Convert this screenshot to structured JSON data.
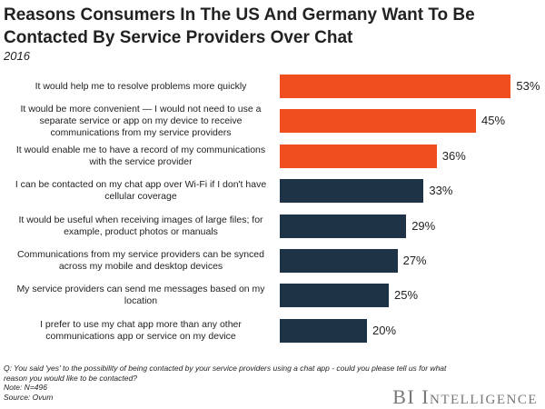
{
  "chart_data": {
    "type": "bar",
    "orientation": "horizontal",
    "title": "Reasons Consumers In The US And Germany Want To Be Contacted By Service Providers Over Chat",
    "subtitle": "2016",
    "categories": [
      "It would help me to resolve problems more quickly",
      "It would be more convenient — I would not need to use a separate service or app on my device to receive communications from my service providers",
      "It would enable me to have a record of my communications with the service provider",
      "I can be contacted on my chat app over Wi-Fi if I don't have cellular coverage",
      "It would be useful when receiving images of large files; for example, product photos or manuals",
      "Communications from my service providers can be synced across my mobile and desktop devices",
      "My service providers can send me messages based on my location",
      "I prefer to use my chat app more than any other communications app or service on my device"
    ],
    "values": [
      53,
      45,
      36,
      33,
      29,
      27,
      25,
      20
    ],
    "value_labels": [
      "53%",
      "45%",
      "36%",
      "33%",
      "29%",
      "27%",
      "25%",
      "20%"
    ],
    "colors": [
      "#f04e1e",
      "#f04e1e",
      "#f04e1e",
      "#1f3346",
      "#1f3346",
      "#1f3346",
      "#1f3346",
      "#1f3346"
    ],
    "notes": [
      "Q: You said 'yes' to the possibility of being contacted by your service providers using a chat app - could you please tell us for what reason you would like to be contacted?",
      "Note: N=496",
      "Source: Ovum"
    ],
    "brand": "BI Intelligence"
  }
}
